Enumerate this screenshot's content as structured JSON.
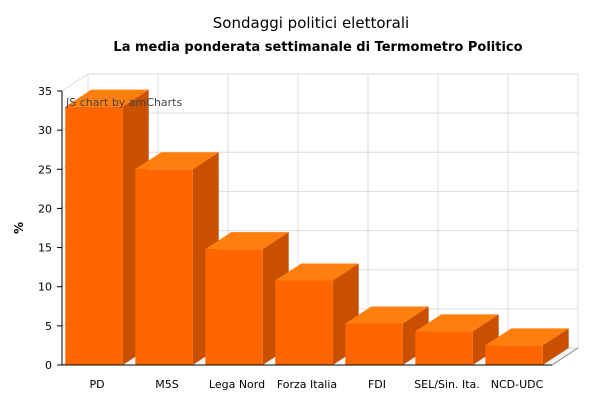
{
  "chart_data": {
    "type": "bar",
    "title": "Sondaggi politici elettorali",
    "subtitle": "La media ponderata settimanale di Termometro Politico",
    "ylabel": "%",
    "credit": "JS chart by amCharts",
    "ylim": [
      0,
      35
    ],
    "yticks": [
      0,
      5,
      10,
      15,
      20,
      25,
      30,
      35
    ],
    "categories": [
      "PD",
      "M5S",
      "Lega Nord",
      "Forza Italia",
      "FDI",
      "SEL/Sin. Ita.",
      "NCD-UDC"
    ],
    "values": [
      33,
      25,
      14.8,
      10.8,
      5.3,
      4.3,
      2.5
    ],
    "colors": {
      "bar_front": "#ff6600",
      "bar_top": "#ff7f0e",
      "bar_side": "#c85000",
      "grid": "#dcdcdc"
    },
    "grid": true,
    "three_d": true
  }
}
